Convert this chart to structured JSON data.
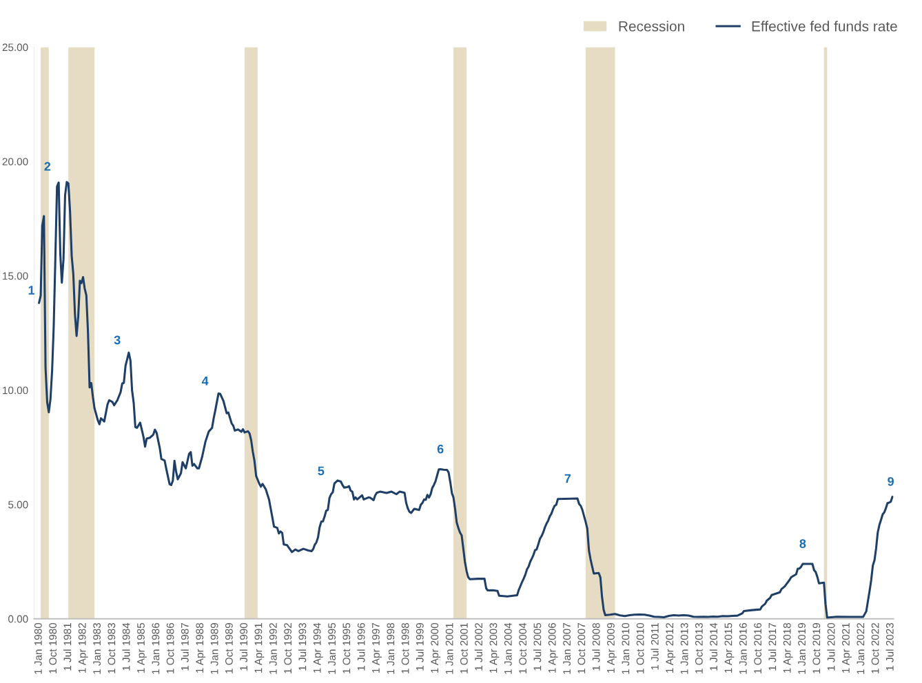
{
  "chart_data": {
    "type": "line",
    "x": [
      "1980-01",
      "1980-02",
      "1980-03",
      "1980-04",
      "1980-05",
      "1980-06",
      "1980-07",
      "1980-08",
      "1980-09",
      "1980-10",
      "1980-11",
      "1980-12",
      "1981-01",
      "1981-02",
      "1981-03",
      "1981-04",
      "1981-05",
      "1981-06",
      "1981-07",
      "1981-08",
      "1981-09",
      "1981-10",
      "1981-11",
      "1981-12",
      "1982-01",
      "1982-02",
      "1982-03",
      "1982-04",
      "1982-05",
      "1982-06",
      "1982-07",
      "1982-08",
      "1982-09",
      "1982-10",
      "1982-11",
      "1982-12",
      "1983-01",
      "1983-02",
      "1983-03",
      "1983-05",
      "1983-07",
      "1983-08",
      "1983-10",
      "1983-11",
      "1984-01",
      "1984-03",
      "1984-04",
      "1984-05",
      "1984-06",
      "1984-08",
      "1984-09",
      "1984-10",
      "1984-11",
      "1984-12",
      "1985-01",
      "1985-03",
      "1985-05",
      "1985-06",
      "1985-07",
      "1985-09",
      "1985-11",
      "1985-12",
      "1986-01",
      "1986-03",
      "1986-04",
      "1986-06",
      "1986-07",
      "1986-09",
      "1986-10",
      "1986-11",
      "1986-12",
      "1987-01",
      "1987-02",
      "1987-04",
      "1987-05",
      "1987-07",
      "1987-09",
      "1987-10",
      "1987-11",
      "1987-12",
      "1988-02",
      "1988-03",
      "1988-05",
      "1988-07",
      "1988-09",
      "1988-11",
      "1988-12",
      "1989-01",
      "1989-03",
      "1989-04",
      "1989-06",
      "1989-08",
      "1989-09",
      "1989-11",
      "1989-12",
      "1990-01",
      "1990-03",
      "1990-05",
      "1990-06",
      "1990-07",
      "1990-09",
      "1990-10",
      "1990-11",
      "1990-12",
      "1991-01",
      "1991-02",
      "1991-04",
      "1991-05",
      "1991-06",
      "1991-08",
      "1991-10",
      "1991-11",
      "1991-12",
      "1992-01",
      "1992-03",
      "1992-04",
      "1992-05",
      "1992-06",
      "1992-07",
      "1992-09",
      "1992-12",
      "1993-02",
      "1993-04",
      "1993-07",
      "1993-10",
      "1993-12",
      "1994-01",
      "1994-02",
      "1994-03",
      "1994-04",
      "1994-05",
      "1994-06",
      "1994-07",
      "1994-08",
      "1994-09",
      "1994-10",
      "1994-11",
      "1994-12",
      "1995-01",
      "1995-02",
      "1995-04",
      "1995-06",
      "1995-07",
      "1995-08",
      "1995-10",
      "1995-11",
      "1995-12",
      "1996-01",
      "1996-02",
      "1996-03",
      "1996-04",
      "1996-07",
      "1996-08",
      "1996-11",
      "1996-12",
      "1997-02",
      "1997-03",
      "1997-04",
      "1997-06",
      "1997-10",
      "1998-01",
      "1998-04",
      "1998-06",
      "1998-09",
      "1998-10",
      "1998-11",
      "1998-12",
      "1999-01",
      "1999-03",
      "1999-06",
      "1999-07",
      "1999-08",
      "1999-09",
      "1999-10",
      "1999-11",
      "1999-12",
      "2000-01",
      "2000-02",
      "2000-03",
      "2000-04",
      "2000-05",
      "2000-06",
      "2000-07",
      "2000-09",
      "2000-11",
      "2000-12",
      "2001-01",
      "2001-02",
      "2001-03",
      "2001-04",
      "2001-05",
      "2001-06",
      "2001-07",
      "2001-08",
      "2001-09",
      "2001-10",
      "2001-11",
      "2001-12",
      "2002-01",
      "2002-06",
      "2002-10",
      "2002-11",
      "2002-12",
      "2003-03",
      "2003-06",
      "2003-07",
      "2003-12",
      "2004-06",
      "2004-07",
      "2004-08",
      "2004-09",
      "2004-10",
      "2004-11",
      "2004-12",
      "2005-01",
      "2005-02",
      "2005-03",
      "2005-04",
      "2005-05",
      "2005-06",
      "2005-07",
      "2005-08",
      "2005-09",
      "2005-10",
      "2005-11",
      "2005-12",
      "2006-01",
      "2006-02",
      "2006-03",
      "2006-04",
      "2006-05",
      "2006-06",
      "2006-07",
      "2007-07",
      "2007-08",
      "2007-09",
      "2007-10",
      "2007-11",
      "2007-12",
      "2008-01",
      "2008-02",
      "2008-03",
      "2008-04",
      "2008-05",
      "2008-08",
      "2008-09",
      "2008-10",
      "2008-11",
      "2008-12",
      "2009-03",
      "2009-06",
      "2009-09",
      "2009-12",
      "2010-03",
      "2010-06",
      "2010-09",
      "2010-12",
      "2011-03",
      "2011-06",
      "2011-09",
      "2011-12",
      "2012-03",
      "2012-06",
      "2012-09",
      "2012-12",
      "2013-03",
      "2013-06",
      "2013-09",
      "2013-12",
      "2014-03",
      "2014-06",
      "2014-09",
      "2014-12",
      "2015-03",
      "2015-06",
      "2015-09",
      "2015-12",
      "2016-01",
      "2016-06",
      "2016-11",
      "2016-12",
      "2017-02",
      "2017-03",
      "2017-05",
      "2017-06",
      "2017-11",
      "2017-12",
      "2018-02",
      "2018-03",
      "2018-05",
      "2018-06",
      "2018-09",
      "2018-10",
      "2018-11",
      "2018-12",
      "2019-01",
      "2019-07",
      "2019-08",
      "2019-09",
      "2019-10",
      "2019-11",
      "2020-02",
      "2020-03",
      "2020-04",
      "2020-10",
      "2021-06",
      "2021-12",
      "2022-02",
      "2022-03",
      "2022-04",
      "2022-05",
      "2022-06",
      "2022-07",
      "2022-08",
      "2022-09",
      "2022-10",
      "2022-11",
      "2022-12",
      "2023-01",
      "2023-02",
      "2023-03",
      "2023-04",
      "2023-05",
      "2023-06",
      "2023-07",
      "2023-08"
    ],
    "series": [
      {
        "name": "Effective fed funds rate",
        "color": "#1f3f66",
        "values": [
          13.82,
          14.13,
          17.19,
          17.61,
          10.98,
          9.47,
          9.03,
          9.61,
          10.87,
          12.81,
          15.85,
          18.9,
          19.08,
          15.93,
          14.7,
          15.72,
          18.52,
          19.1,
          19.04,
          17.82,
          15.87,
          15.08,
          13.31,
          12.37,
          13.22,
          14.78,
          14.68,
          14.94,
          14.45,
          14.15,
          12.59,
          10.12,
          10.31,
          9.71,
          9.2,
          8.95,
          8.68,
          8.51,
          8.77,
          8.63,
          9.37,
          9.56,
          9.48,
          9.34,
          9.56,
          9.91,
          10.29,
          10.32,
          11.06,
          11.64,
          11.3,
          9.99,
          9.43,
          8.38,
          8.35,
          8.58,
          7.97,
          7.53,
          7.88,
          7.92,
          8.05,
          8.27,
          8.14,
          7.48,
          6.99,
          6.92,
          6.56,
          5.89,
          5.85,
          6.04,
          6.91,
          6.43,
          6.1,
          6.37,
          6.85,
          6.58,
          7.22,
          7.29,
          6.69,
          6.77,
          6.58,
          6.58,
          7.09,
          7.75,
          8.19,
          8.35,
          8.76,
          9.12,
          9.85,
          9.84,
          9.53,
          8.99,
          9.02,
          8.55,
          8.45,
          8.23,
          8.28,
          8.18,
          8.29,
          8.15,
          8.2,
          8.11,
          7.81,
          7.31,
          6.91,
          6.25,
          5.91,
          5.78,
          5.9,
          5.66,
          5.21,
          4.81,
          4.43,
          4.03,
          3.98,
          3.73,
          3.82,
          3.76,
          3.25,
          3.22,
          2.92,
          3.03,
          2.96,
          3.06,
          2.99,
          2.96,
          3.05,
          3.25,
          3.34,
          3.56,
          4.01,
          4.25,
          4.26,
          4.47,
          4.73,
          4.76,
          5.29,
          5.45,
          5.53,
          5.92,
          6.05,
          6.0,
          5.85,
          5.74,
          5.76,
          5.8,
          5.6,
          5.56,
          5.22,
          5.31,
          5.22,
          5.4,
          5.22,
          5.31,
          5.29,
          5.19,
          5.39,
          5.51,
          5.56,
          5.5,
          5.56,
          5.45,
          5.56,
          5.51,
          5.07,
          4.83,
          4.68,
          4.63,
          4.81,
          4.76,
          4.99,
          5.07,
          5.22,
          5.2,
          5.42,
          5.3,
          5.45,
          5.73,
          5.85,
          6.02,
          6.27,
          6.53,
          6.54,
          6.52,
          6.51,
          6.4,
          5.98,
          5.49,
          5.31,
          4.8,
          4.21,
          3.97,
          3.77,
          3.65,
          3.07,
          2.49,
          2.09,
          1.82,
          1.73,
          1.75,
          1.75,
          1.34,
          1.24,
          1.25,
          1.22,
          1.01,
          0.98,
          1.03,
          1.26,
          1.43,
          1.61,
          1.76,
          1.93,
          2.16,
          2.28,
          2.5,
          2.63,
          2.79,
          3.0,
          3.04,
          3.26,
          3.5,
          3.62,
          3.78,
          4.0,
          4.16,
          4.29,
          4.49,
          4.59,
          4.79,
          4.94,
          4.99,
          5.24,
          5.26,
          5.02,
          4.94,
          4.76,
          4.49,
          4.24,
          3.94,
          2.98,
          2.61,
          2.28,
          1.98,
          2.0,
          1.81,
          0.97,
          0.39,
          0.16,
          0.18,
          0.21,
          0.15,
          0.12,
          0.16,
          0.18,
          0.19,
          0.18,
          0.14,
          0.09,
          0.08,
          0.07,
          0.13,
          0.16,
          0.14,
          0.16,
          0.14,
          0.09,
          0.08,
          0.09,
          0.08,
          0.1,
          0.09,
          0.12,
          0.11,
          0.13,
          0.14,
          0.24,
          0.34,
          0.38,
          0.41,
          0.54,
          0.66,
          0.79,
          0.91,
          1.04,
          1.16,
          1.3,
          1.42,
          1.51,
          1.7,
          1.82,
          1.95,
          2.19,
          2.2,
          2.27,
          2.4,
          2.4,
          2.13,
          2.04,
          1.83,
          1.55,
          1.58,
          0.65,
          0.05,
          0.09,
          0.08,
          0.08,
          0.08,
          0.2,
          0.33,
          0.77,
          1.21,
          1.68,
          2.33,
          2.56,
          3.08,
          3.78,
          4.1,
          4.33,
          4.57,
          4.65,
          4.83,
          5.06,
          5.08,
          5.12,
          5.33
        ]
      }
    ],
    "bands": [
      {
        "axis": "x",
        "from": "1980-02",
        "to": "1980-07",
        "label": "Recession",
        "color": "#e5dcc3"
      },
      {
        "axis": "x",
        "from": "1981-07",
        "to": "1982-11",
        "color": "#e5dcc3"
      },
      {
        "axis": "x",
        "from": "1990-07",
        "to": "1991-03",
        "color": "#e5dcc3"
      },
      {
        "axis": "x",
        "from": "2001-03",
        "to": "2001-11",
        "color": "#e5dcc3"
      },
      {
        "axis": "x",
        "from": "2007-12",
        "to": "2009-06",
        "color": "#e5dcc3"
      },
      {
        "axis": "x",
        "from": "2020-02",
        "to": "2020-04",
        "color": "#e5dcc3"
      }
    ],
    "annotations": [
      {
        "text": "1",
        "x": "1980-01",
        "y": 13.82
      },
      {
        "text": "2",
        "x": "1980-12",
        "y": 18.9
      },
      {
        "text": "3",
        "x": "1984-08",
        "y": 11.64
      },
      {
        "text": "4",
        "x": "1989-03",
        "y": 9.85
      },
      {
        "text": "5",
        "x": "1995-02",
        "y": 5.92
      },
      {
        "text": "6",
        "x": "2000-07",
        "y": 6.54
      },
      {
        "text": "7",
        "x": "2007-01",
        "y": 5.25
      },
      {
        "text": "8",
        "x": "2019-01",
        "y": 2.4
      },
      {
        "text": "9",
        "x": "2023-07",
        "y": 5.12
      }
    ],
    "xlim": [
      "1979-10-01",
      "2023-08-20"
    ],
    "xticks": [
      {
        "value": "1980-01-01",
        "label": "1 Jan 1980"
      },
      {
        "value": "1980-10-01",
        "label": "1 Oct 1980"
      },
      {
        "value": "1981-07-01",
        "label": "1 Jul 1981"
      },
      {
        "value": "1982-04-01",
        "label": "1 Apr 1982"
      },
      {
        "value": "1983-01-01",
        "label": "1 Jan 1983"
      },
      {
        "value": "1983-10-01",
        "label": "1 Oct 1983"
      },
      {
        "value": "1984-07-01",
        "label": "1 Jul 1984"
      },
      {
        "value": "1985-04-01",
        "label": "1 Apr 1985"
      },
      {
        "value": "1986-01-01",
        "label": "1 Jan 1986"
      },
      {
        "value": "1986-10-01",
        "label": "1 Oct 1986"
      },
      {
        "value": "1987-07-01",
        "label": "1 Jul 1987"
      },
      {
        "value": "1988-04-01",
        "label": "1 Apr 1988"
      },
      {
        "value": "1989-01-01",
        "label": "1 Jan 1989"
      },
      {
        "value": "1989-10-01",
        "label": "1 Oct 1989"
      },
      {
        "value": "1990-07-01",
        "label": "1 Jul 1990"
      },
      {
        "value": "1991-04-01",
        "label": "1 Apr 1991"
      },
      {
        "value": "1992-01-01",
        "label": "1 Jan 1992"
      },
      {
        "value": "1992-10-01",
        "label": "1 Oct 1992"
      },
      {
        "value": "1993-07-01",
        "label": "1 Jul 1993"
      },
      {
        "value": "1994-04-01",
        "label": "1 Apr 1994"
      },
      {
        "value": "1995-01-01",
        "label": "1 Jan 1995"
      },
      {
        "value": "1995-10-01",
        "label": "1 Oct 1995"
      },
      {
        "value": "1996-07-01",
        "label": "1 Jul 1996"
      },
      {
        "value": "1997-04-01",
        "label": "1 Apr 1997"
      },
      {
        "value": "1998-01-01",
        "label": "1 Jan 1998"
      },
      {
        "value": "1998-10-01",
        "label": "1 Oct 1998"
      },
      {
        "value": "1999-07-01",
        "label": "1 Jul 1999"
      },
      {
        "value": "2000-04-01",
        "label": "1 Apr 2000"
      },
      {
        "value": "2001-01-01",
        "label": "1 Jan 2001"
      },
      {
        "value": "2001-10-01",
        "label": "1 Oct 2001"
      },
      {
        "value": "2002-07-01",
        "label": "1 Jul 2002"
      },
      {
        "value": "2003-04-01",
        "label": "1 Apr 2003"
      },
      {
        "value": "2004-01-01",
        "label": "1 Jan 2004"
      },
      {
        "value": "2004-10-01",
        "label": "1 Oct 2004"
      },
      {
        "value": "2005-07-01",
        "label": "1 Jul 2005"
      },
      {
        "value": "2006-04-01",
        "label": "1 Apr 2006"
      },
      {
        "value": "2007-01-01",
        "label": "1 Jan 2007"
      },
      {
        "value": "2007-10-01",
        "label": "1 Oct 2007"
      },
      {
        "value": "2008-07-01",
        "label": "1 Jul 2008"
      },
      {
        "value": "2009-04-01",
        "label": "1 Apr 2009"
      },
      {
        "value": "2010-01-01",
        "label": "1 Jan 2010"
      },
      {
        "value": "2010-10-01",
        "label": "1 Oct 2010"
      },
      {
        "value": "2011-07-01",
        "label": "1 Jul 2011"
      },
      {
        "value": "2012-04-01",
        "label": "1 Apr 2012"
      },
      {
        "value": "2013-01-01",
        "label": "1 Jan 2013"
      },
      {
        "value": "2013-10-01",
        "label": "1 Oct 2013"
      },
      {
        "value": "2014-07-01",
        "label": "1 Jul 2014"
      },
      {
        "value": "2015-04-01",
        "label": "1 Apr 2015"
      },
      {
        "value": "2016-01-01",
        "label": "1 Jan 2016"
      },
      {
        "value": "2016-10-01",
        "label": "1 Oct 2016"
      },
      {
        "value": "2017-07-01",
        "label": "1 Jul 2017"
      },
      {
        "value": "2018-04-01",
        "label": "1 Apr 2018"
      },
      {
        "value": "2019-01-01",
        "label": "1 Jan 2019"
      },
      {
        "value": "2019-10-01",
        "label": "1 Oct 2019"
      },
      {
        "value": "2020-07-01",
        "label": "1 Jul 2020"
      },
      {
        "value": "2021-04-01",
        "label": "1 Apr 2021"
      },
      {
        "value": "2022-01-01",
        "label": "1 Jan 2022"
      },
      {
        "value": "2022-10-01",
        "label": "1 Oct 2022"
      },
      {
        "value": "2023-07-01",
        "label": "1 Jul 2023"
      }
    ],
    "ylim": [
      0,
      25
    ],
    "yticks": [
      {
        "value": 0,
        "label": "0.00"
      },
      {
        "value": 5,
        "label": "5.00"
      },
      {
        "value": 10,
        "label": "10.00"
      },
      {
        "value": 15,
        "label": "15.00"
      },
      {
        "value": 20,
        "label": "20.00"
      },
      {
        "value": 25,
        "label": "25.00"
      }
    ],
    "grid": false,
    "legend": "top right",
    "line_style": "solid",
    "marker": "none"
  }
}
